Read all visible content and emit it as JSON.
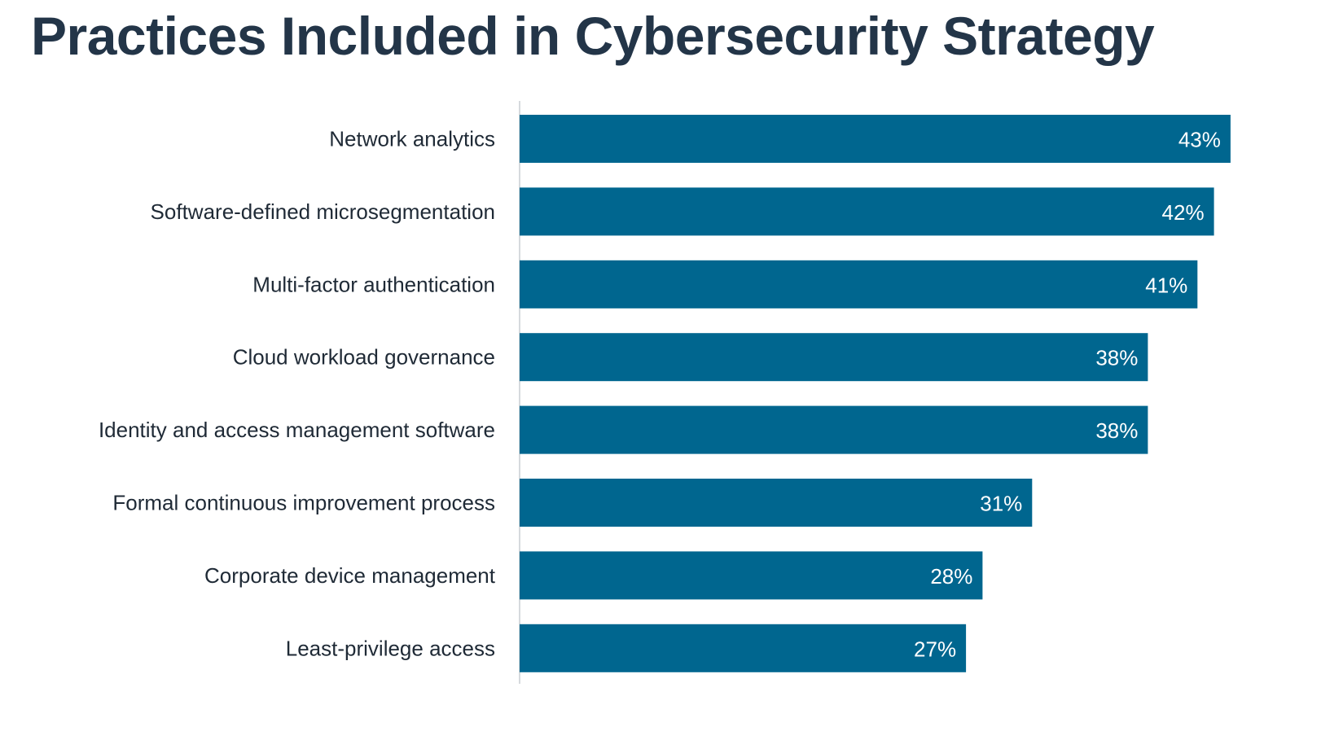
{
  "chart_data": {
    "type": "bar",
    "orientation": "horizontal",
    "title": "Practices Included in Cybersecurity Strategy",
    "categories": [
      "Network analytics",
      "Software-defined microsegmentation",
      "Multi-factor authentication",
      "Cloud workload governance",
      "Identity and access management software",
      "Formal continuous improvement process",
      "Corporate device management",
      "Least-privilege access"
    ],
    "values": [
      43,
      42,
      41,
      38,
      38,
      31,
      28,
      27
    ],
    "value_labels": [
      "43%",
      "42%",
      "41%",
      "38%",
      "38%",
      "31%",
      "28%",
      "27%"
    ],
    "unit": "%",
    "grid": false,
    "legend": "none",
    "colors": {
      "bar": "#00668f",
      "title": "#233548",
      "label": "#1f2a36",
      "value_label": "#ffffff",
      "axis": "#c8cdd2"
    }
  }
}
